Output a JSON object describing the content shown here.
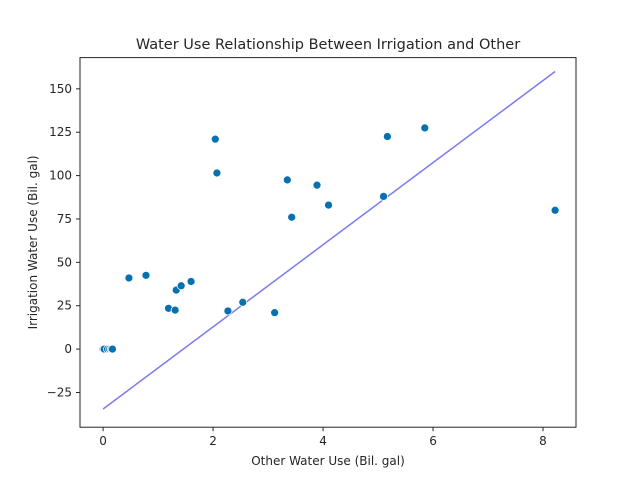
{
  "chart_data": {
    "type": "scatter",
    "title": "Water Use Relationship Between Irrigation and Other",
    "xlabel": "Other Water Use (Bil. gal)",
    "ylabel": "Irrigation Water Use (Bil. gal)",
    "xlim": [
      -0.42,
      8.6
    ],
    "ylim": [
      -45,
      168
    ],
    "xticks": [
      0,
      2,
      4,
      6,
      8
    ],
    "yticks": [
      -25,
      0,
      25,
      50,
      75,
      100,
      125,
      150
    ],
    "grid": false,
    "legend": "none",
    "colors": {
      "points": "#0571b0",
      "line": "#7b7bf0",
      "axes": "#262626"
    },
    "points": [
      {
        "x": 0.0,
        "y": 0
      },
      {
        "x": 0.02,
        "y": 0
      },
      {
        "x": 0.08,
        "y": 0
      },
      {
        "x": 0.12,
        "y": 0
      },
      {
        "x": 0.15,
        "y": 0
      },
      {
        "x": 0.17,
        "y": 0
      },
      {
        "x": 0.47,
        "y": 41
      },
      {
        "x": 0.78,
        "y": 42.5
      },
      {
        "x": 1.19,
        "y": 23.5
      },
      {
        "x": 1.31,
        "y": 22.5
      },
      {
        "x": 1.33,
        "y": 34
      },
      {
        "x": 1.42,
        "y": 36.5
      },
      {
        "x": 1.6,
        "y": 39
      },
      {
        "x": 2.04,
        "y": 121
      },
      {
        "x": 2.07,
        "y": 101.5
      },
      {
        "x": 2.27,
        "y": 22
      },
      {
        "x": 2.54,
        "y": 27
      },
      {
        "x": 3.12,
        "y": 21
      },
      {
        "x": 3.35,
        "y": 97.5
      },
      {
        "x": 3.43,
        "y": 76
      },
      {
        "x": 3.89,
        "y": 94.5
      },
      {
        "x": 4.1,
        "y": 83
      },
      {
        "x": 5.1,
        "y": 88
      },
      {
        "x": 5.17,
        "y": 122.5
      },
      {
        "x": 5.85,
        "y": 127.5
      },
      {
        "x": 8.22,
        "y": 80
      }
    ],
    "fit_line": {
      "x": [
        0.0,
        8.22
      ],
      "y": [
        -34.5,
        160
      ]
    }
  }
}
